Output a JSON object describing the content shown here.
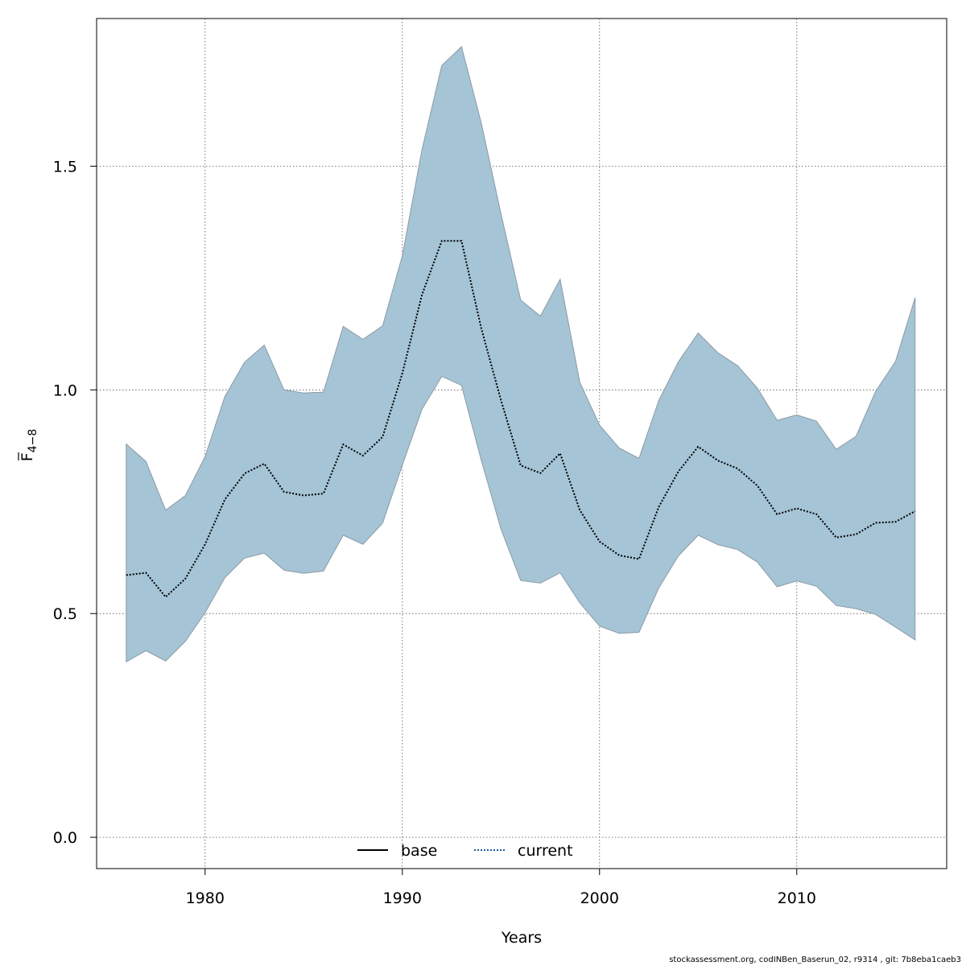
{
  "chart_data": {
    "type": "area",
    "xlabel": "Years",
    "ylabel_main": "F",
    "ylabel_sub": "4−8",
    "xlim": [
      1974.5,
      2017.6
    ],
    "ylim": [
      -0.07,
      1.83
    ],
    "xticks": [
      1980,
      1990,
      2000,
      2010
    ],
    "yticks": [
      0.0,
      0.5,
      1.0,
      1.5
    ],
    "ytick_labels": [
      "0.0",
      "0.5",
      "1.0",
      "1.5"
    ],
    "grid": true,
    "legend_position": "bottom",
    "band_color": "#a5c4d5",
    "band_edge_color": "#8c9ba5",
    "x": [
      1976,
      1977,
      1978,
      1979,
      1980,
      1981,
      1982,
      1983,
      1984,
      1985,
      1986,
      1987,
      1988,
      1989,
      1990,
      1991,
      1992,
      1993,
      1994,
      1995,
      1996,
      1997,
      1998,
      1999,
      2000,
      2001,
      2002,
      2003,
      2004,
      2005,
      2006,
      2007,
      2008,
      2009,
      2010,
      2011,
      2012,
      2013,
      2014,
      2015,
      2016
    ],
    "series": [
      {
        "name": "current",
        "style": "dotted",
        "color": "#000000",
        "values": [
          0.586,
          0.591,
          0.537,
          0.578,
          0.655,
          0.755,
          0.813,
          0.835,
          0.772,
          0.764,
          0.768,
          0.878,
          0.853,
          0.895,
          1.037,
          1.213,
          1.333,
          1.333,
          1.138,
          0.977,
          0.831,
          0.814,
          0.858,
          0.731,
          0.661,
          0.63,
          0.622,
          0.738,
          0.818,
          0.873,
          0.842,
          0.824,
          0.786,
          0.722,
          0.735,
          0.722,
          0.67,
          0.677,
          0.703,
          0.705,
          0.729
        ],
        "lower": [
          0.392,
          0.417,
          0.394,
          0.438,
          0.502,
          0.58,
          0.624,
          0.635,
          0.597,
          0.59,
          0.595,
          0.675,
          0.655,
          0.702,
          0.832,
          0.957,
          1.03,
          1.01,
          0.843,
          0.689,
          0.574,
          0.568,
          0.591,
          0.524,
          0.472,
          0.456,
          0.458,
          0.557,
          0.629,
          0.675,
          0.654,
          0.643,
          0.615,
          0.56,
          0.573,
          0.561,
          0.518,
          0.511,
          0.498,
          0.47,
          0.441
        ],
        "upper": [
          0.879,
          0.84,
          0.731,
          0.764,
          0.851,
          0.985,
          1.062,
          1.1,
          1.0,
          0.993,
          0.995,
          1.142,
          1.113,
          1.143,
          1.3,
          1.538,
          1.725,
          1.767,
          1.597,
          1.394,
          1.201,
          1.165,
          1.247,
          1.017,
          0.921,
          0.87,
          0.847,
          0.976,
          1.063,
          1.127,
          1.083,
          1.054,
          1.004,
          0.932,
          0.944,
          0.93,
          0.867,
          0.896,
          0.997,
          1.063,
          1.206
        ]
      }
    ],
    "legend": [
      {
        "name": "base",
        "style": "solid",
        "color": "#000000"
      },
      {
        "name": "current",
        "style": "dotted",
        "color": "#1f5fa0"
      }
    ]
  },
  "footer_text": "stockassessment.org, codINBen_Baserun_02, r9314 , git: 7b8eba1caeb3"
}
